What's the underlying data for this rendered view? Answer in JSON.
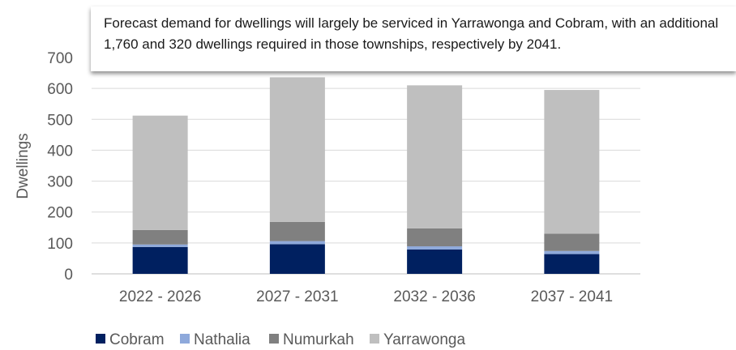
{
  "chart_data": {
    "type": "bar",
    "stacked": true,
    "categories": [
      "2022 - 2026",
      "2027 - 2031",
      "2032 - 2036",
      "2037 - 2041"
    ],
    "series": [
      {
        "name": "Cobram",
        "color": "#002060",
        "values": [
          87,
          96,
          79,
          64
        ]
      },
      {
        "name": "Nathalia",
        "color": "#8EA9DB",
        "values": [
          8,
          10,
          10,
          10
        ]
      },
      {
        "name": "Numurkah",
        "color": "#808080",
        "values": [
          47,
          62,
          58,
          56
        ]
      },
      {
        "name": "Yarrawonga",
        "color": "#BFBFBF",
        "values": [
          370,
          468,
          463,
          465
        ]
      }
    ],
    "ylabel": "Dwellings",
    "ylim": [
      0,
      700
    ],
    "yticks": [
      0,
      100,
      200,
      300,
      400,
      500,
      600,
      700
    ],
    "grid": true,
    "legend": "bottom-left"
  },
  "tooltip": {
    "text": "Forecast demand for dwellings will largely be serviced in Yarrawonga and Cobram, with an additional 1,760 and 320 dwellings required in those townships, respectively by 2041."
  }
}
